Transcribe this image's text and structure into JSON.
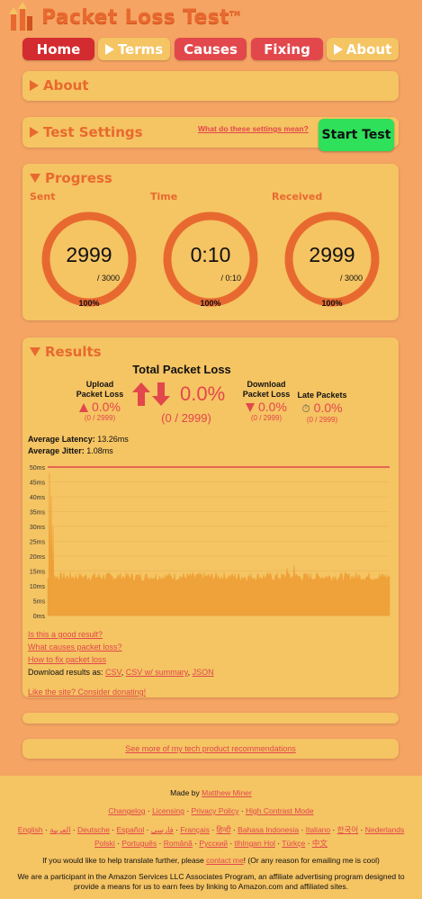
{
  "header": {
    "title": "Packet Loss Test",
    "tm": "TM"
  },
  "nav": [
    {
      "label": "Home"
    },
    {
      "label": "Terms"
    },
    {
      "label": "Causes"
    },
    {
      "label": "Fixing"
    },
    {
      "label": "About"
    }
  ],
  "about_panel": {
    "title": "About"
  },
  "settings_panel": {
    "title": "Test Settings",
    "settings_link": "What do these settings mean?",
    "start_button": "Start Test"
  },
  "progress": {
    "title": "Progress",
    "gauges": [
      {
        "label": "Sent",
        "value": "2999",
        "max": "/ 3000",
        "percent": "100%",
        "fill": 1.0
      },
      {
        "label": "Time",
        "value": "0:10",
        "max": "/ 0:10",
        "percent": "100%",
        "fill": 1.0
      },
      {
        "label": "Received",
        "value": "2999",
        "max": "/ 3000",
        "percent": "100%",
        "fill": 1.0
      }
    ]
  },
  "results": {
    "title": "Results",
    "total_label": "Total Packet Loss",
    "total_pct": "0.0%",
    "total_count": "(0 / 2999)",
    "upload": {
      "label_line1": "Upload",
      "label_line2": "Packet Loss",
      "pct": "0.0%",
      "count": "(0 / 2999)"
    },
    "download": {
      "label_line1": "Download",
      "label_line2": "Packet Loss",
      "pct": "0.0%",
      "count": "(0 / 2999)"
    },
    "late": {
      "label": "Late Packets",
      "pct": "0.0%",
      "count": "(0 / 2999)"
    },
    "latency_label": "Average Latency:",
    "latency_value": "13.26ms",
    "jitter_label": "Average Jitter:",
    "jitter_value": "1.08ms",
    "links": {
      "good_result": "Is this a good result?",
      "causes": "What causes packet loss?",
      "fix": "How to fix packet loss",
      "download_prefix": "Download results as:",
      "csv": "CSV",
      "csv_summary": "CSV w/ summary",
      "json": "JSON",
      "donate": "Like the site? Consider donating!"
    }
  },
  "chart_data": {
    "type": "area",
    "y_ticks": [
      "50ms",
      "45ms",
      "40ms",
      "35ms",
      "30ms",
      "25ms",
      "20ms",
      "15ms",
      "10ms",
      "5ms",
      "0ms"
    ],
    "ylim": [
      0,
      50
    ],
    "threshold": 50,
    "samples": 2999,
    "typical_ms": 13,
    "spikes": [
      [
        0.005,
        48
      ],
      [
        0.01,
        40
      ],
      [
        0.015,
        30
      ],
      [
        0.7,
        16
      ],
      [
        0.72,
        17
      ]
    ],
    "colors": {
      "fill": "#f0a23a",
      "threshold": "#e2474c"
    }
  },
  "recommend": {
    "label": "See more of my tech product recommendations"
  },
  "footer": {
    "made_by_prefix": "Made by",
    "author": "Matthew Miner",
    "meta_links": [
      "Changelog",
      "Licensing",
      "Privacy Policy",
      "High Contrast Mode"
    ],
    "languages_row1": [
      "English",
      "العربية",
      "Deutsche",
      "Español",
      "فارسی",
      "Français",
      "हिन्दी",
      "Bahasa Indonesia",
      "Italiano",
      "한국어",
      "Nederlands"
    ],
    "languages_row2": [
      "Polski",
      "Português",
      "Română",
      "Русский",
      "tlhIngan Hol",
      "Türkçe",
      "中文"
    ],
    "translate_prefix": "If you would like to help translate further, please",
    "contact": "contact me",
    "translate_suffix": "! (Or any reason for emailing me is cool)",
    "amazon_line1": "We are a participant in the Amazon Services LLC Associates Program, an affiliate advertising program designed to",
    "amazon_line2": "provide a means for us to earn fees by linking to Amazon.com and affiliated sites."
  }
}
